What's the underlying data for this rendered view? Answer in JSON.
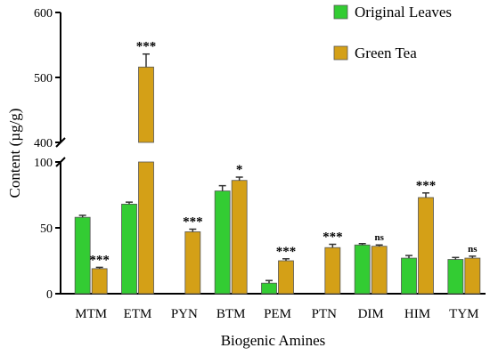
{
  "chart_data": {
    "type": "bar",
    "title": "",
    "xlabel": "Biogenic Amines",
    "ylabel": "Content (µg/g)",
    "axis_break": {
      "lower_range": [
        0,
        100
      ],
      "upper_range": [
        400,
        600
      ]
    },
    "y_ticks": [
      "0",
      "50",
      "100",
      "400",
      "500",
      "600"
    ],
    "legend_position": "top-right",
    "categories": [
      "MTM",
      "ETM",
      "PYN",
      "BTM",
      "PEM",
      "PTN",
      "DIM",
      "HIM",
      "TYM"
    ],
    "series": [
      {
        "name": "Original Leaves",
        "color": "#33cc33",
        "values": [
          58,
          68,
          0,
          78,
          8,
          0,
          37,
          27,
          26
        ],
        "errors": [
          1.5,
          1.5,
          0,
          4,
          2,
          0,
          1,
          2,
          1.5
        ]
      },
      {
        "name": "Green Tea",
        "color": "#d4a017",
        "values": [
          19,
          516,
          47,
          86,
          25,
          35,
          36,
          73,
          27
        ],
        "errors": [
          1,
          20,
          2,
          2.5,
          1.5,
          2.5,
          1,
          3.5,
          1.5
        ]
      }
    ],
    "significance": [
      "***",
      "***",
      "***",
      "*",
      "***",
      "***",
      "ns",
      "***",
      "ns"
    ]
  }
}
